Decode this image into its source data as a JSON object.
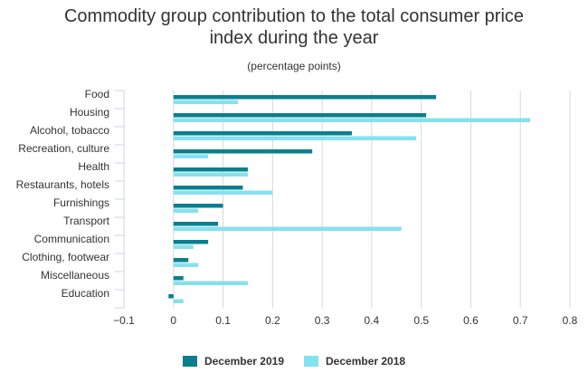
{
  "chart_data": {
    "type": "bar",
    "orientation": "horizontal",
    "title": "Commodity group contribution to the total consumer price index during the year",
    "title_lines": [
      "Commodity group contribution to the total consumer price",
      "index during the year"
    ],
    "subtitle": "(percentage points)",
    "categories": [
      "Food",
      "Housing",
      "Alcohol, tobacco",
      "Recreation, culture",
      "Health",
      "Restaurants, hotels",
      "Furnishings",
      "Transport",
      "Communication",
      "Clothing, footwear",
      "Miscellaneous",
      "Education"
    ],
    "series": [
      {
        "name": "December 2019",
        "color": "#0b7f8d",
        "values": [
          0.53,
          0.51,
          0.36,
          0.28,
          0.15,
          0.14,
          0.1,
          0.09,
          0.07,
          0.03,
          0.02,
          -0.01
        ]
      },
      {
        "name": "December 2018",
        "color": "#86e1ef",
        "values": [
          0.13,
          0.72,
          0.49,
          0.07,
          0.15,
          0.2,
          0.05,
          0.46,
          0.04,
          0.05,
          0.15,
          0.02
        ]
      }
    ],
    "xlim": [
      -0.1,
      0.8
    ],
    "xticks": [
      "−0.1",
      "0",
      "0.1",
      "0.2",
      "0.3",
      "0.4",
      "0.5",
      "0.6",
      "0.7",
      "0.8"
    ],
    "xtick_values": [
      -0.1,
      0,
      0.1,
      0.2,
      0.3,
      0.4,
      0.5,
      0.6,
      0.7,
      0.8
    ],
    "grid": true,
    "legend_position": "bottom"
  }
}
